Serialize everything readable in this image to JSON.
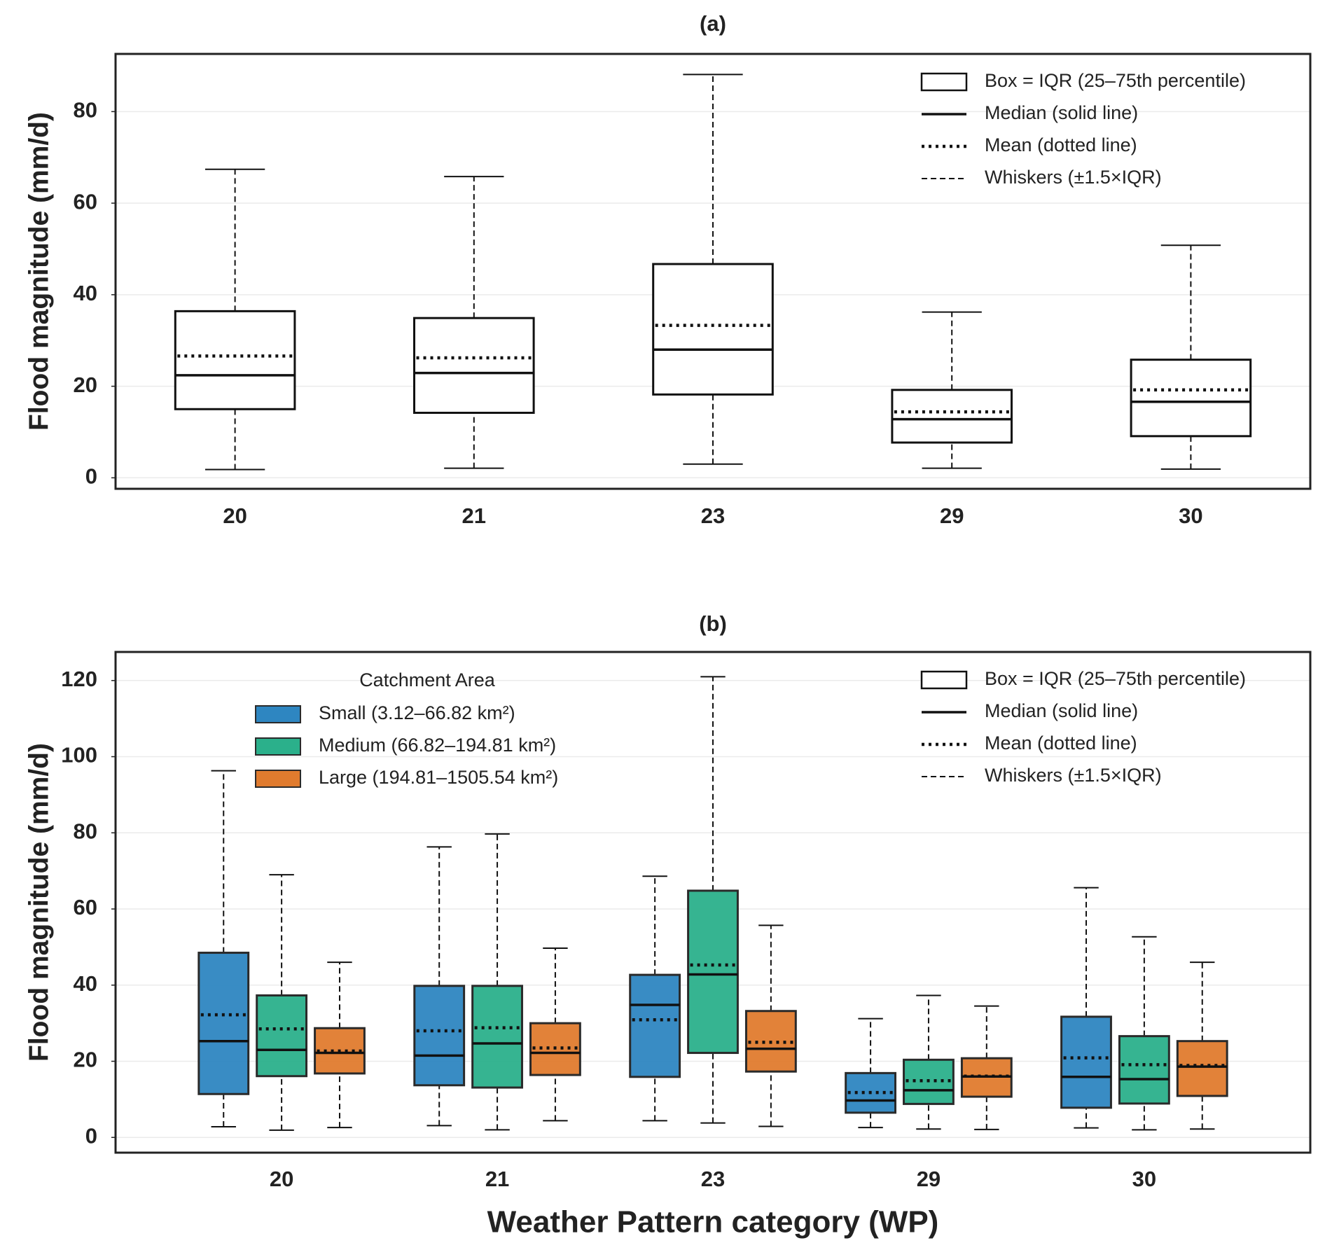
{
  "chart_data": [
    {
      "type": "box",
      "title": "(a)",
      "ylabel": "Flood magnitude (mm/d)",
      "categories": [
        "20",
        "21",
        "23",
        "29",
        "30"
      ],
      "ylim": [
        -2.4,
        92.6
      ],
      "yticks": [
        0,
        20,
        40,
        60,
        80
      ],
      "grid": true,
      "key_legend": [
        "Box = IQR (25–75th percentile)",
        "Median (solid line)",
        "Mean (dotted line)",
        "Whiskers (±1.5×IQR)"
      ],
      "key_legend_loc": "upper right",
      "series": [
        {
          "color": "#ffffff",
          "whisker_low": [
            1.8,
            2.1,
            3.0,
            2.1,
            1.9
          ],
          "q1": [
            15.0,
            14.2,
            18.2,
            7.7,
            9.1
          ],
          "median": [
            22.4,
            22.9,
            28.0,
            12.8,
            16.6
          ],
          "q3": [
            36.4,
            34.9,
            46.7,
            19.2,
            25.8
          ],
          "whisker_high": [
            67.4,
            65.8,
            88.1,
            36.2,
            50.8
          ],
          "mean": [
            26.6,
            26.2,
            33.3,
            14.4,
            19.2
          ]
        }
      ]
    },
    {
      "type": "box",
      "title": "(b)",
      "ylabel": "Flood magnitude (mm/d)",
      "xlabel": "Weather Pattern category (WP)",
      "categories": [
        "20",
        "21",
        "23",
        "29",
        "30"
      ],
      "ylim": [
        -4.0,
        127.5
      ],
      "yticks": [
        0,
        20,
        40,
        60,
        80,
        100,
        120
      ],
      "grid": true,
      "key_legend": [
        "Box = IQR (25–75th percentile)",
        "Median (solid line)",
        "Mean (dotted line)",
        "Whiskers (±1.5×IQR)"
      ],
      "key_legend_loc": "upper right",
      "legend_title": "Catchment Area",
      "legend_loc": "upper left",
      "series": [
        {
          "name": "Small (3.12–66.82 km²)",
          "color": "#2e86c1",
          "whisker_low": [
            2.8,
            3.1,
            4.4,
            2.6,
            2.5
          ],
          "q1": [
            11.4,
            13.7,
            15.9,
            6.5,
            7.8
          ],
          "median": [
            25.3,
            21.5,
            34.8,
            9.7,
            15.9
          ],
          "q3": [
            48.5,
            39.8,
            42.7,
            16.9,
            31.7
          ],
          "whisker_high": [
            96.3,
            76.3,
            68.6,
            31.2,
            65.6
          ],
          "mean": [
            32.2,
            28.0,
            30.9,
            11.8,
            20.9
          ]
        },
        {
          "name": "Medium (66.82–194.81 km²)",
          "color": "#2bb08b",
          "whisker_low": [
            1.9,
            2.0,
            3.8,
            2.2,
            2.0
          ],
          "q1": [
            16.1,
            13.1,
            22.2,
            8.8,
            8.9
          ],
          "median": [
            23.0,
            24.7,
            42.8,
            12.4,
            15.3
          ],
          "q3": [
            37.3,
            39.8,
            64.8,
            20.4,
            26.6
          ],
          "whisker_high": [
            69.0,
            79.7,
            121.0,
            37.3,
            52.7
          ],
          "mean": [
            28.5,
            28.8,
            45.3,
            14.9,
            19.1
          ]
        },
        {
          "name": "Large (194.81–1505.54 km²)",
          "color": "#e07b2e",
          "whisker_low": [
            2.6,
            4.4,
            2.9,
            2.1,
            2.2
          ],
          "q1": [
            16.8,
            16.4,
            17.3,
            10.7,
            10.9
          ],
          "median": [
            22.2,
            22.2,
            23.3,
            16.0,
            18.6
          ],
          "q3": [
            28.7,
            30.0,
            33.2,
            20.8,
            25.3
          ],
          "whisker_high": [
            46.0,
            49.7,
            55.7,
            34.5,
            46.0
          ],
          "mean": [
            22.7,
            23.5,
            25.0,
            16.1,
            18.9
          ]
        }
      ]
    }
  ]
}
